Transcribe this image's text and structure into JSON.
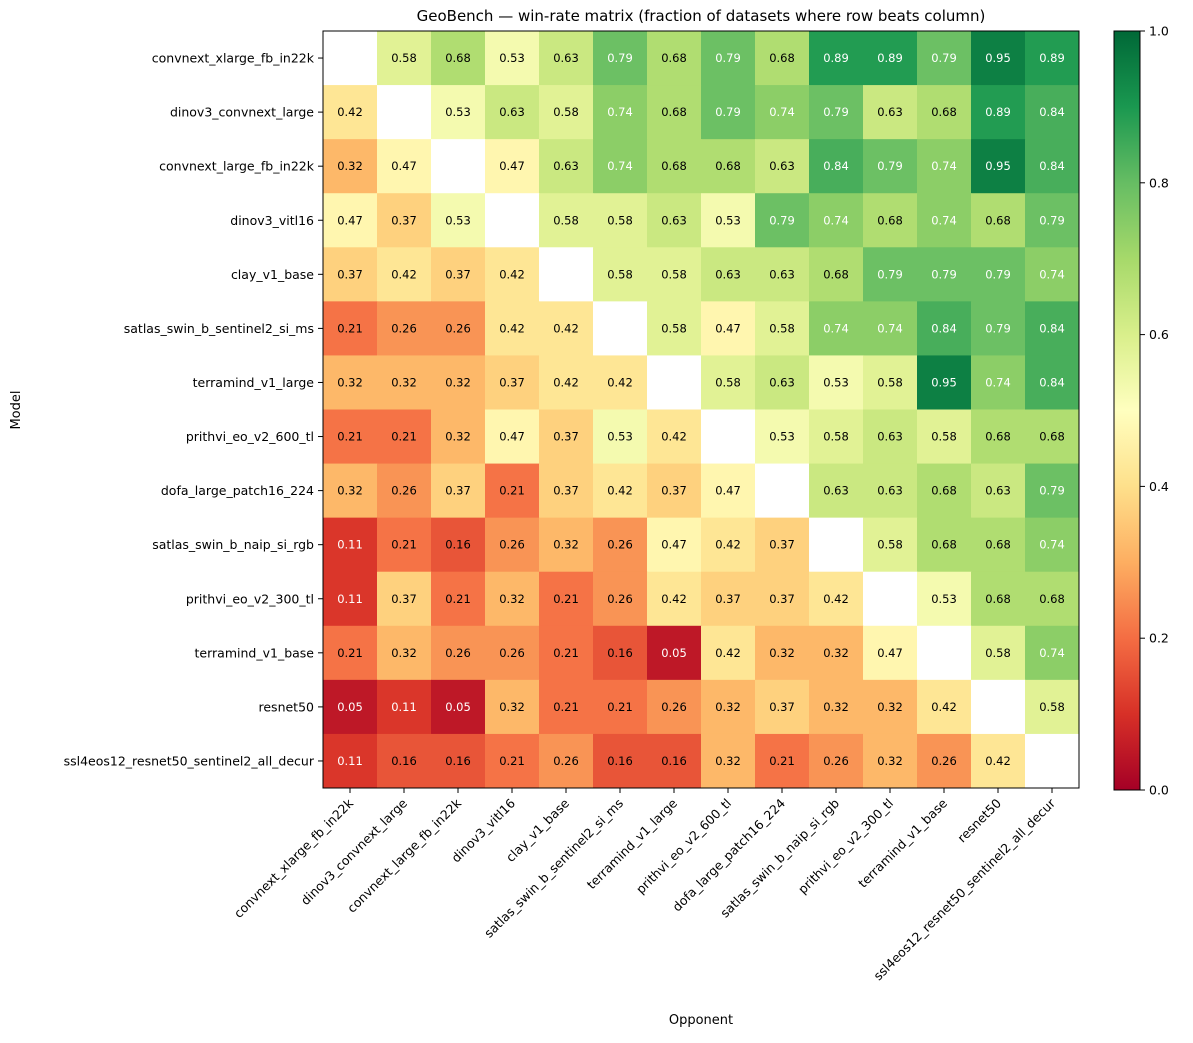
{
  "chart_data": {
    "type": "heatmap",
    "title": "GeoBench — win-rate matrix (fraction of datasets where row beats column)",
    "xlabel": "Opponent",
    "ylabel": "Model",
    "rows": [
      "convnext_xlarge_fb_in22k",
      "dinov3_convnext_large",
      "convnext_large_fb_in22k",
      "dinov3_vitl16",
      "clay_v1_base",
      "satlas_swin_b_sentinel2_si_ms",
      "terramind_v1_large",
      "prithvi_eo_v2_600_tl",
      "dofa_large_patch16_224",
      "satlas_swin_b_naip_si_rgb",
      "prithvi_eo_v2_300_tl",
      "terramind_v1_base",
      "resnet50",
      "ssl4eos12_resnet50_sentinel2_all_decur"
    ],
    "columns": [
      "convnext_xlarge_fb_in22k",
      "dinov3_convnext_large",
      "convnext_large_fb_in22k",
      "dinov3_vitl16",
      "clay_v1_base",
      "satlas_swin_b_sentinel2_si_ms",
      "terramind_v1_large",
      "prithvi_eo_v2_600_tl",
      "dofa_large_patch16_224",
      "satlas_swin_b_naip_si_rgb",
      "prithvi_eo_v2_300_tl",
      "terramind_v1_base",
      "resnet50",
      "ssl4eos12_resnet50_sentinel2_all_decur"
    ],
    "values": [
      [
        null,
        0.58,
        0.68,
        0.53,
        0.63,
        0.79,
        0.68,
        0.79,
        0.68,
        0.89,
        0.89,
        0.79,
        0.95,
        0.89
      ],
      [
        0.42,
        null,
        0.53,
        0.63,
        0.58,
        0.74,
        0.68,
        0.79,
        0.74,
        0.79,
        0.63,
        0.68,
        0.89,
        0.84
      ],
      [
        0.32,
        0.47,
        null,
        0.47,
        0.63,
        0.74,
        0.68,
        0.68,
        0.63,
        0.84,
        0.79,
        0.74,
        0.95,
        0.84
      ],
      [
        0.47,
        0.37,
        0.53,
        null,
        0.58,
        0.58,
        0.63,
        0.53,
        0.79,
        0.74,
        0.68,
        0.74,
        0.68,
        0.79
      ],
      [
        0.37,
        0.42,
        0.37,
        0.42,
        null,
        0.58,
        0.58,
        0.63,
        0.63,
        0.68,
        0.79,
        0.79,
        0.79,
        0.74
      ],
      [
        0.21,
        0.26,
        0.26,
        0.42,
        0.42,
        null,
        0.58,
        0.47,
        0.58,
        0.74,
        0.74,
        0.84,
        0.79,
        0.84
      ],
      [
        0.32,
        0.32,
        0.32,
        0.37,
        0.42,
        0.42,
        null,
        0.58,
        0.63,
        0.53,
        0.58,
        0.95,
        0.74,
        0.84
      ],
      [
        0.21,
        0.21,
        0.32,
        0.47,
        0.37,
        0.53,
        0.42,
        null,
        0.53,
        0.58,
        0.63,
        0.58,
        0.68,
        0.68
      ],
      [
        0.32,
        0.26,
        0.37,
        0.21,
        0.37,
        0.42,
        0.37,
        0.47,
        null,
        0.63,
        0.63,
        0.68,
        0.63,
        0.79
      ],
      [
        0.11,
        0.21,
        0.16,
        0.26,
        0.32,
        0.26,
        0.47,
        0.42,
        0.37,
        null,
        0.58,
        0.68,
        0.68,
        0.74
      ],
      [
        0.11,
        0.37,
        0.21,
        0.32,
        0.21,
        0.26,
        0.42,
        0.37,
        0.37,
        0.42,
        null,
        0.53,
        0.68,
        0.68
      ],
      [
        0.21,
        0.32,
        0.26,
        0.26,
        0.21,
        0.16,
        0.05,
        0.42,
        0.32,
        0.32,
        0.47,
        null,
        0.58,
        0.74
      ],
      [
        0.05,
        0.11,
        0.05,
        0.32,
        0.21,
        0.21,
        0.26,
        0.32,
        0.37,
        0.32,
        0.32,
        0.42,
        null,
        0.58
      ],
      [
        0.11,
        0.16,
        0.16,
        0.21,
        0.26,
        0.16,
        0.16,
        0.32,
        0.21,
        0.26,
        0.32,
        0.26,
        0.42,
        null
      ]
    ],
    "value_format": "2 decimals",
    "colormap": "RdYlGn",
    "vmin": 0.0,
    "vmax": 1.0,
    "diagonal": "blank",
    "colorbar": {
      "ticks": [
        "0.0",
        "0.2",
        "0.4",
        "0.6",
        "0.8",
        "1.0"
      ],
      "placement": "right"
    },
    "grid": false,
    "legend": "none"
  }
}
